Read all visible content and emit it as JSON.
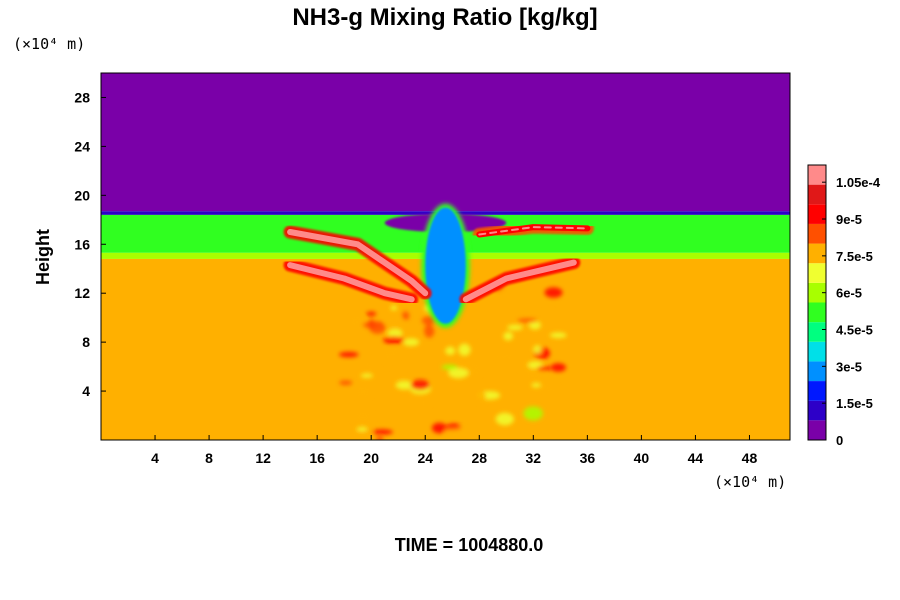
{
  "chart_data": {
    "type": "heatmap",
    "title": "NH3-g Mixing Ratio [kg/kg]",
    "xlabel": "",
    "ylabel": "Height",
    "x_unit": "(×10⁴ m)",
    "y_unit": "(×10⁴ m)",
    "xlim": [
      0,
      51
    ],
    "ylim": [
      0,
      30
    ],
    "x_ticks": [
      4,
      8,
      12,
      16,
      20,
      24,
      28,
      32,
      36,
      40,
      44,
      48
    ],
    "y_ticks": [
      4,
      8,
      12,
      16,
      20,
      24,
      28
    ],
    "colorbar": {
      "range": [
        0,
        0.000112
      ],
      "tick_values": [
        0,
        1.5e-05,
        3e-05,
        4.5e-05,
        6e-05,
        7.5e-05,
        9e-05,
        0.000105
      ],
      "tick_labels": [
        "0",
        "1.5e-5",
        "3e-5",
        "4.5e-5",
        "6e-5",
        "7.5e-5",
        "9e-5",
        "1.05e-4"
      ],
      "colors": [
        "#7a00a8",
        "#2d00c8",
        "#0018ff",
        "#0090ff",
        "#00e0e8",
        "#00ff80",
        "#30ff20",
        "#a8ff00",
        "#f0ff30",
        "#ffb000",
        "#ff5000",
        "#ff0000",
        "#e01818",
        "#ff8a8a"
      ]
    },
    "bands": [
      {
        "y_from": 18.7,
        "y_to": 30,
        "value": 0.0
      },
      {
        "y_from": 18.4,
        "y_to": 18.7,
        "value": 1.5e-05
      },
      {
        "y_from": 15.3,
        "y_to": 18.4,
        "value": 5e-05
      },
      {
        "y_from": 14.8,
        "y_to": 15.3,
        "value": 6e-05
      },
      {
        "y_from": 0,
        "y_to": 14.8,
        "value": 7.3e-05
      }
    ],
    "features": {
      "center_plume_low": {
        "x_range": [
          24,
          27
        ],
        "y_range": [
          9.5,
          19
        ],
        "value": 3e-05
      },
      "dry_notch_top": {
        "x_range": [
          21,
          30
        ],
        "y_range": [
          17,
          18.5
        ],
        "value": 0.0
      },
      "high_ridges": [
        {
          "path": [
            [
              14,
              17
            ],
            [
              19,
              16
            ],
            [
              23,
              13
            ],
            [
              24,
              12
            ]
          ],
          "value": 0.000105
        },
        {
          "path": [
            [
              14,
              14.3
            ],
            [
              18,
              13.2
            ],
            [
              21,
              12
            ],
            [
              23,
              11.5
            ]
          ],
          "value": 0.000105
        },
        {
          "path": [
            [
              27,
              11.5
            ],
            [
              30,
              13.2
            ],
            [
              35,
              14.5
            ]
          ],
          "value": 0.000105
        },
        {
          "path": [
            [
              28,
              16.8
            ],
            [
              32,
              17.4
            ],
            [
              36,
              17.3
            ]
          ],
          "value": 9.5e-05
        }
      ],
      "turbulent_zone": {
        "x_range": [
          18,
          34
        ],
        "y_range": [
          0,
          13
        ],
        "value": 8.5e-05
      }
    }
  },
  "footer": {
    "time_label": "TIME = 1004880.0"
  }
}
